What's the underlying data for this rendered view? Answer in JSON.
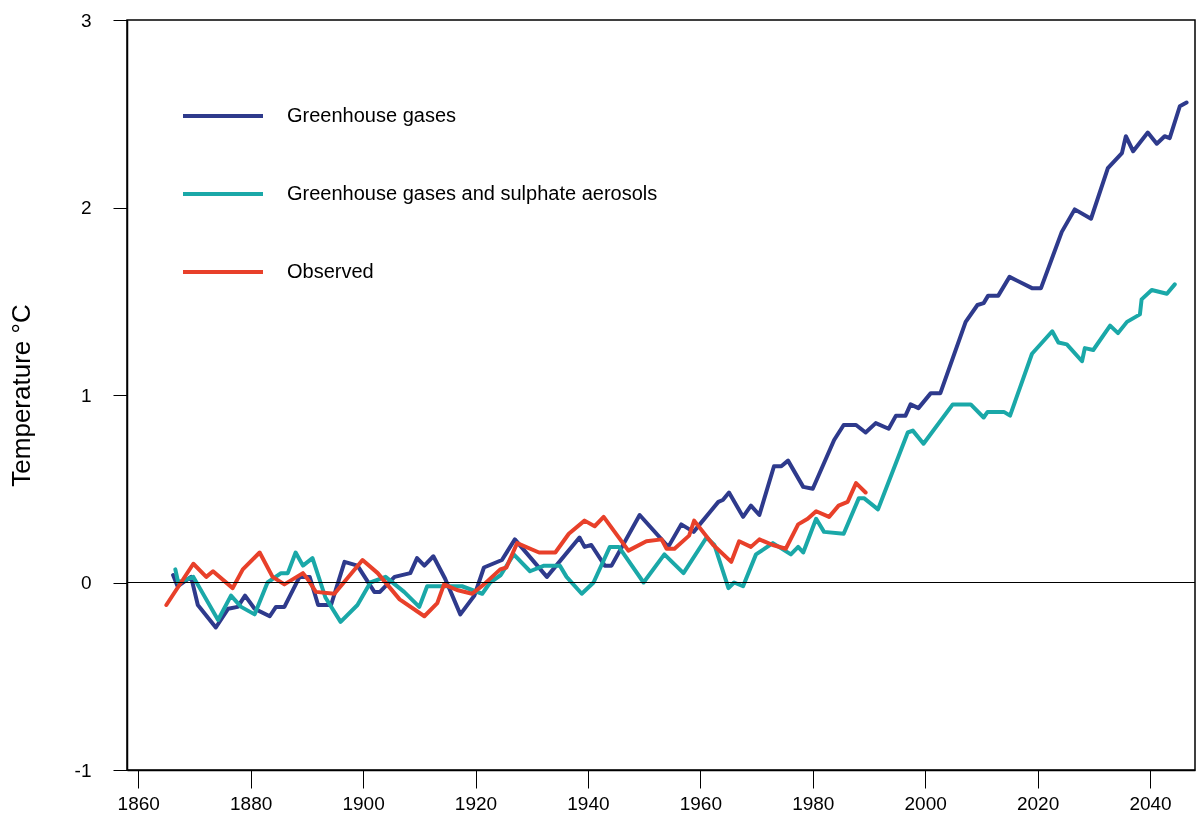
{
  "chart_data": {
    "type": "line",
    "ylabel": "Temperature °C",
    "xlim": [
      1858,
      2048
    ],
    "ylim": [
      -1,
      3
    ],
    "xticks": [
      1860,
      1880,
      1900,
      1920,
      1940,
      1960,
      1980,
      2000,
      2020,
      2040
    ],
    "yticks": [
      -1,
      0,
      1,
      2,
      3
    ],
    "legend": "top left",
    "ref_lines": [
      {
        "axis": "y",
        "value": 0,
        "color": "#000000"
      }
    ],
    "series": [
      {
        "name": "Greenhouse gases",
        "color": "#2e3a8c",
        "x": [
          1866.2,
          1867,
          1869.4,
          1870.6,
          1873.8,
          1876,
          1877.7,
          1879,
          1880.7,
          1883.4,
          1884.5,
          1886,
          1888.7,
          1890.5,
          1892,
          1894.3,
          1896.7,
          1899,
          1902,
          1903,
          1905.6,
          1908.4,
          1909.6,
          1910.9,
          1912.5,
          1914.6,
          1917.3,
          1919.8,
          1921.5,
          1924.7,
          1927,
          1932.7,
          1938.5,
          1939.4,
          1940.6,
          1943,
          1944.2,
          1949.2,
          1954.3,
          1956.6,
          1958.8,
          1963.2,
          1964,
          1965.1,
          1967.6,
          1969,
          1970.5,
          1973.1,
          1974.4,
          1975.6,
          1978.3,
          1980,
          1983.8,
          1985.5,
          1987.7,
          1989.4,
          1991.2,
          1993.5,
          1994.8,
          1996.5,
          1997.4,
          1998.8,
          2001,
          2002.7,
          2007.2,
          2009.3,
          2010.4,
          2011.2,
          2013,
          2015,
          2019,
          2020.6,
          2024.3,
          2026.6,
          2029.5,
          2032.5,
          2035,
          2035.7,
          2037,
          2039.6,
          2041.2,
          2042.6,
          2043.5,
          2045.3,
          2046.5
        ],
        "values": [
          0.04,
          -0.02,
          0.03,
          -0.12,
          -0.24,
          -0.14,
          -0.13,
          -0.07,
          -0.14,
          -0.18,
          -0.13,
          -0.13,
          0.03,
          0.03,
          -0.12,
          -0.12,
          0.11,
          0.09,
          -0.05,
          -0.05,
          0.03,
          0.05,
          0.13,
          0.09,
          0.14,
          0.02,
          -0.17,
          -0.07,
          0.08,
          0.12,
          0.23,
          0.03,
          0.24,
          0.19,
          0.2,
          0.09,
          0.09,
          0.36,
          0.19,
          0.31,
          0.27,
          0.43,
          0.44,
          0.48,
          0.35,
          0.41,
          0.36,
          0.62,
          0.62,
          0.65,
          0.51,
          0.5,
          0.76,
          0.84,
          0.84,
          0.8,
          0.85,
          0.82,
          0.89,
          0.89,
          0.95,
          0.93,
          1.01,
          1.01,
          1.39,
          1.48,
          1.49,
          1.53,
          1.53,
          1.63,
          1.57,
          1.57,
          1.87,
          1.99,
          1.94,
          2.21,
          2.29,
          2.38,
          2.3,
          2.4,
          2.34,
          2.38,
          2.37,
          2.54,
          2.56
        ]
      },
      {
        "name": "Greenhouse gases and sulphate aerosols",
        "color": "#1aa8a8",
        "x": [
          1866.6,
          1867.1,
          1869.8,
          1874.2,
          1876.5,
          1878.3,
          1880.7,
          1883,
          1885.4,
          1886.6,
          1888,
          1889.3,
          1891,
          1893.3,
          1896,
          1899,
          1901.3,
          1904,
          1907.3,
          1910,
          1911.4,
          1914.6,
          1917.6,
          1921.2,
          1922.6,
          1924.5,
          1926.8,
          1929.7,
          1932.2,
          1935,
          1936.2,
          1938.9,
          1941,
          1943.9,
          1945.5,
          1949.9,
          1953.6,
          1957,
          1961.1,
          1962.5,
          1965,
          1966,
          1967.6,
          1969.9,
          1972.9,
          1976.1,
          1977.4,
          1978.3,
          1980.6,
          1982,
          1985.5,
          1988.2,
          1989.1,
          1991.6,
          1996.9,
          1997.8,
          1999.7,
          2004.9,
          2008.1,
          2010.4,
          2011.1,
          2014,
          2015.1,
          2019,
          2022.6,
          2023.7,
          2025.2,
          2027.9,
          2028.4,
          2029.9,
          2032.9,
          2034.3,
          2035.9,
          2038.2,
          2038.5,
          2040.3,
          2043,
          2044.4
        ],
        "values": [
          0.07,
          0.0,
          0.03,
          -0.2,
          -0.07,
          -0.13,
          -0.17,
          0.0,
          0.05,
          0.05,
          0.16,
          0.09,
          0.13,
          -0.08,
          -0.21,
          -0.12,
          0.0,
          0.03,
          -0.05,
          -0.13,
          -0.02,
          -0.02,
          -0.02,
          -0.06,
          0.0,
          0.04,
          0.15,
          0.06,
          0.09,
          0.09,
          0.03,
          -0.06,
          0.0,
          0.19,
          0.19,
          0.0,
          0.15,
          0.05,
          0.24,
          0.2,
          -0.03,
          0.0,
          -0.02,
          0.15,
          0.21,
          0.15,
          0.19,
          0.16,
          0.34,
          0.27,
          0.26,
          0.45,
          0.45,
          0.39,
          0.8,
          0.81,
          0.74,
          0.95,
          0.95,
          0.88,
          0.91,
          0.91,
          0.89,
          1.22,
          1.34,
          1.28,
          1.27,
          1.18,
          1.25,
          1.24,
          1.37,
          1.33,
          1.39,
          1.43,
          1.51,
          1.56,
          1.54,
          1.59
        ]
      },
      {
        "name": "Observed",
        "color": "#e8402a",
        "x": [
          1865,
          1869.8,
          1872.1,
          1873.3,
          1876.8,
          1878.6,
          1881.6,
          1883.9,
          1886,
          1889.3,
          1890.1,
          1891.6,
          1894.9,
          1899.9,
          1902.6,
          1906.5,
          1910.9,
          1913.2,
          1914.4,
          1916.7,
          1919.4,
          1921.5,
          1924.4,
          1925.5,
          1927.4,
          1931.3,
          1934.2,
          1936.6,
          1939.4,
          1941.2,
          1942.8,
          1947.2,
          1950.4,
          1953.1,
          1954,
          1955.4,
          1958,
          1958.9,
          1962.3,
          1965.5,
          1966.9,
          1969,
          1970.5,
          1972.9,
          1975.2,
          1977.4,
          1979.1,
          1980.6,
          1982.9,
          1984.6,
          1986.2,
          1987.7,
          1989.4
        ],
        "values": [
          -0.12,
          0.1,
          0.03,
          0.06,
          -0.03,
          0.07,
          0.16,
          0.03,
          -0.01,
          0.05,
          0.02,
          -0.05,
          -0.06,
          0.12,
          0.05,
          -0.09,
          -0.18,
          -0.11,
          -0.01,
          -0.04,
          -0.06,
          -0.01,
          0.07,
          0.08,
          0.21,
          0.16,
          0.16,
          0.26,
          0.33,
          0.3,
          0.35,
          0.17,
          0.22,
          0.23,
          0.18,
          0.18,
          0.25,
          0.33,
          0.2,
          0.11,
          0.22,
          0.19,
          0.23,
          0.2,
          0.18,
          0.31,
          0.34,
          0.38,
          0.35,
          0.41,
          0.43,
          0.53,
          0.48
        ]
      }
    ]
  }
}
